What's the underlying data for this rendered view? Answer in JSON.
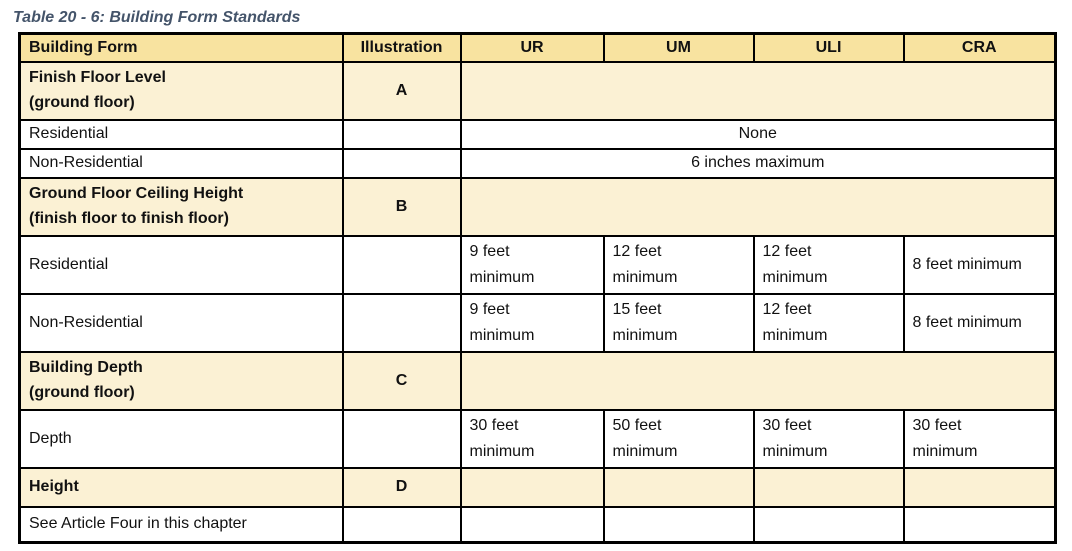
{
  "page_title": "Table 20 - 6: Building Form Standards",
  "colors": {
    "header_bg": "#F8E3A0",
    "section_bg": "#FBF1D4",
    "border": "#000000",
    "title_color": "#44546A"
  },
  "table": {
    "header": {
      "building_form": "Building Form",
      "illustration": "Illustration",
      "ur": "UR",
      "um": "UM",
      "uli": "ULI",
      "cra": "CRA"
    },
    "finish_floor": {
      "title": "Finish Floor Level",
      "subtitle": "(ground floor)",
      "illustration": "A",
      "residential": {
        "label": "Residential",
        "value": "None"
      },
      "non_residential": {
        "label": "Non-Residential",
        "value": "6 inches maximum"
      }
    },
    "ceiling_height": {
      "title": "Ground Floor Ceiling Height",
      "subtitle": "(finish floor to finish floor)",
      "illustration": "B",
      "residential": {
        "label": "Residential",
        "ur": "9 feet minimum",
        "um": "12 feet minimum",
        "uli": "12 feet minimum",
        "cra": "8 feet minimum"
      },
      "non_residential": {
        "label": "Non-Residential",
        "ur": "9 feet minimum",
        "um": "15 feet minimum",
        "uli": "12 feet minimum",
        "cra": "8 feet minimum"
      }
    },
    "building_depth": {
      "title": "Building Depth",
      "subtitle": "(ground floor)",
      "illustration": "C",
      "depth": {
        "label": "Depth",
        "ur": "30 feet minimum",
        "um": "50 feet minimum",
        "uli": "30 feet minimum",
        "cra": "30 feet minimum"
      }
    },
    "height": {
      "title": "Height",
      "illustration": "D",
      "note": "See Article Four in this chapter"
    }
  }
}
